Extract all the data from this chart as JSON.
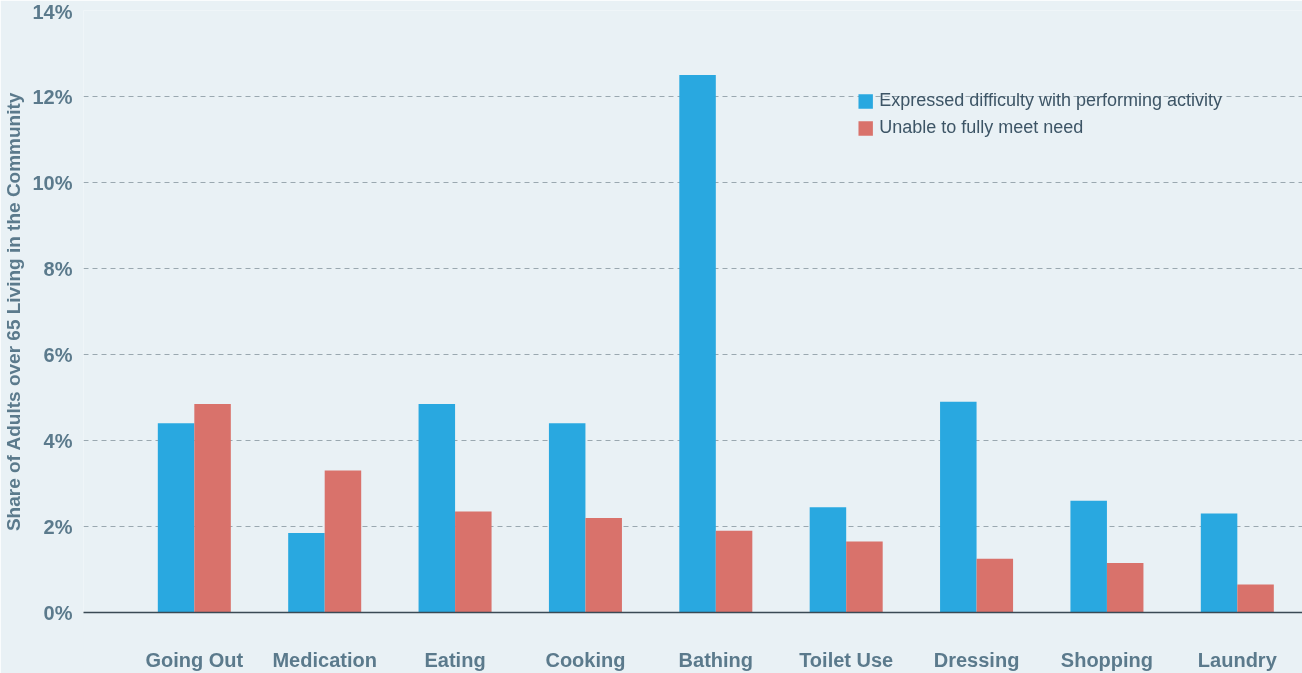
{
  "chart_data": {
    "type": "bar",
    "ylabel": "Share of Adults over 65 Living in the Community",
    "categories": [
      "Going Out",
      "Medication",
      "Eating",
      "Cooking",
      "Bathing",
      "Toilet Use",
      "Dressing",
      "Shopping",
      "Laundry"
    ],
    "series": [
      {
        "name": "Expressed difficulty with performing activity",
        "color": "#29a8e0",
        "values": [
          4.4,
          1.85,
          4.85,
          4.4,
          12.5,
          2.45,
          4.9,
          2.6,
          2.3
        ]
      },
      {
        "name": "Unable to fully meet need",
        "color": "#d9726b",
        "values": [
          4.85,
          3.3,
          2.35,
          2.2,
          1.9,
          1.65,
          1.25,
          1.15,
          0.65
        ]
      }
    ],
    "ylim": [
      0,
      14
    ],
    "yticks": [
      {
        "value": 0,
        "label": "0%"
      },
      {
        "value": 2,
        "label": "2%"
      },
      {
        "value": 4,
        "label": "4%"
      },
      {
        "value": 6,
        "label": "6%"
      },
      {
        "value": 8,
        "label": "8%"
      },
      {
        "value": 10,
        "label": "10%"
      },
      {
        "value": 12,
        "label": "12%"
      },
      {
        "value": 14,
        "label": "14%"
      }
    ],
    "grid": "y",
    "legend": "top right"
  }
}
